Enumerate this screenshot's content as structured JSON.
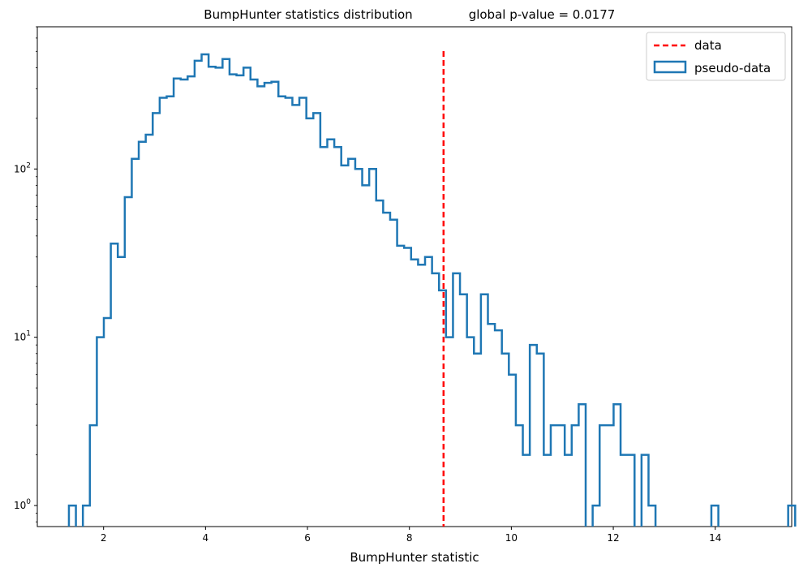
{
  "chart_data": {
    "type": "histogram",
    "title": "BumpHunter statistics distribution",
    "title_annotation": "global p-value = 0.0177",
    "xlabel": "BumpHunter statistic",
    "ylabel": "",
    "xlim": [
      0.7,
      15.5
    ],
    "ylim": [
      0.75,
      700
    ],
    "yscale": "log",
    "x_ticks": [
      "2",
      "4",
      "6",
      "8",
      "10",
      "12",
      "14"
    ],
    "y_ticks": [
      "10^0",
      "10^1",
      "10^2"
    ],
    "bin_width": 0.137,
    "bin_start": 1.32,
    "series": [
      {
        "name": "pseudo-data",
        "style": "step",
        "color": "#1f77b4",
        "counts": [
          1,
          0,
          1,
          3,
          10,
          13,
          36,
          30,
          68,
          115,
          145,
          160,
          215,
          265,
          270,
          345,
          340,
          355,
          440,
          480,
          405,
          400,
          450,
          365,
          360,
          400,
          340,
          310,
          325,
          330,
          270,
          265,
          240,
          265,
          200,
          215,
          135,
          150,
          135,
          105,
          115,
          100,
          80,
          100,
          65,
          55,
          50,
          35,
          34,
          29,
          27,
          30,
          24,
          19,
          10,
          24,
          18,
          10,
          8,
          18,
          12,
          11,
          8,
          6,
          3,
          2,
          9,
          8,
          2,
          3,
          3,
          2,
          3,
          4,
          0,
          1,
          3,
          3,
          4,
          2,
          2,
          0,
          2,
          1,
          0,
          0,
          0,
          0,
          0,
          0,
          0,
          0,
          1,
          0,
          0,
          0,
          0,
          0,
          0,
          0,
          0,
          0,
          0,
          1
        ]
      },
      {
        "name": "data",
        "style": "vline-dashed",
        "color": "#ff0000",
        "x": 8.67
      }
    ],
    "legend": {
      "position": "top-right",
      "entries": [
        "data",
        "pseudo-data"
      ]
    }
  }
}
